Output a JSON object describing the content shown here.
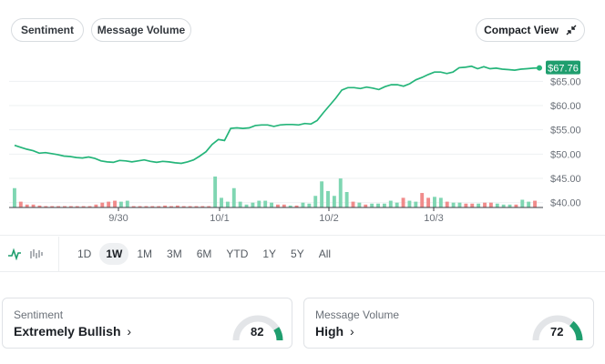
{
  "tabs": {
    "sentiment": "Sentiment",
    "message_volume": "Message Volume"
  },
  "compact_view": "Compact View",
  "price_badge": "$67.76",
  "colors": {
    "up": "#25b57a",
    "up_light": "#7fd6b2",
    "down": "#f08b8b",
    "accent": "#1f9e6e"
  },
  "chart_data": {
    "type": "line",
    "title": "",
    "x_ticks": [
      "9/30",
      "10/1",
      "10/2",
      "10/3"
    ],
    "y_ticks": [
      "$65.00",
      "$60.00",
      "$55.00",
      "$50.00",
      "$45.00",
      "$40.00"
    ],
    "ylim": [
      39,
      69
    ],
    "last_value": 67.76,
    "price": [
      51.8,
      51.4,
      51.0,
      50.7,
      50.2,
      50.3,
      50.1,
      49.9,
      49.6,
      49.5,
      49.3,
      49.2,
      49.4,
      49.1,
      48.6,
      48.4,
      48.3,
      48.7,
      48.6,
      48.4,
      48.6,
      48.8,
      48.5,
      48.3,
      48.5,
      48.4,
      48.2,
      48.1,
      48.4,
      48.8,
      49.6,
      50.5,
      52.0,
      53.0,
      52.8,
      55.3,
      55.4,
      55.3,
      55.4,
      55.9,
      56.0,
      56.0,
      55.7,
      56.0,
      56.1,
      56.1,
      56.0,
      56.3,
      56.2,
      56.9,
      58.5,
      60.0,
      61.5,
      63.2,
      63.7,
      63.7,
      63.5,
      63.8,
      63.6,
      63.3,
      63.9,
      64.3,
      64.3,
      64.0,
      64.5,
      65.3,
      65.8,
      66.4,
      66.9,
      66.9,
      66.6,
      66.9,
      67.8,
      67.9,
      68.1,
      67.6,
      68.0,
      67.6,
      67.7,
      67.5,
      67.4,
      67.3,
      67.5,
      67.6,
      67.7,
      67.76
    ],
    "volume": [
      {
        "v": 20,
        "d": "up"
      },
      {
        "v": 6,
        "d": "down"
      },
      {
        "v": 3,
        "d": "down"
      },
      {
        "v": 3,
        "d": "down"
      },
      {
        "v": 2,
        "d": "down"
      },
      {
        "v": 1,
        "d": "down"
      },
      {
        "v": 1,
        "d": "down"
      },
      {
        "v": 1,
        "d": "down"
      },
      {
        "v": 1,
        "d": "down"
      },
      {
        "v": 1,
        "d": "down"
      },
      {
        "v": 1,
        "d": "down"
      },
      {
        "v": 1,
        "d": "down"
      },
      {
        "v": 1,
        "d": "down"
      },
      {
        "v": 3,
        "d": "down"
      },
      {
        "v": 5,
        "d": "down"
      },
      {
        "v": 6,
        "d": "down"
      },
      {
        "v": 7,
        "d": "down"
      },
      {
        "v": 6,
        "d": "up"
      },
      {
        "v": 7,
        "d": "up"
      },
      {
        "v": 1,
        "d": "down"
      },
      {
        "v": 1,
        "d": "down"
      },
      {
        "v": 1,
        "d": "down"
      },
      {
        "v": 1,
        "d": "down"
      },
      {
        "v": 1,
        "d": "down"
      },
      {
        "v": 2,
        "d": "down"
      },
      {
        "v": 1,
        "d": "down"
      },
      {
        "v": 2,
        "d": "down"
      },
      {
        "v": 1,
        "d": "down"
      },
      {
        "v": 1,
        "d": "down"
      },
      {
        "v": 1,
        "d": "down"
      },
      {
        "v": 1,
        "d": "down"
      },
      {
        "v": 1,
        "d": "down"
      },
      {
        "v": 32,
        "d": "up"
      },
      {
        "v": 10,
        "d": "up"
      },
      {
        "v": 6,
        "d": "up"
      },
      {
        "v": 20,
        "d": "up"
      },
      {
        "v": 6,
        "d": "up"
      },
      {
        "v": 3,
        "d": "up"
      },
      {
        "v": 5,
        "d": "up"
      },
      {
        "v": 7,
        "d": "up"
      },
      {
        "v": 7,
        "d": "up"
      },
      {
        "v": 5,
        "d": "up"
      },
      {
        "v": 3,
        "d": "down"
      },
      {
        "v": 3,
        "d": "down"
      },
      {
        "v": 2,
        "d": "up"
      },
      {
        "v": 2,
        "d": "down"
      },
      {
        "v": 5,
        "d": "up"
      },
      {
        "v": 4,
        "d": "up"
      },
      {
        "v": 12,
        "d": "up"
      },
      {
        "v": 27,
        "d": "up"
      },
      {
        "v": 17,
        "d": "up"
      },
      {
        "v": 12,
        "d": "up"
      },
      {
        "v": 30,
        "d": "up"
      },
      {
        "v": 16,
        "d": "up"
      },
      {
        "v": 6,
        "d": "down"
      },
      {
        "v": 5,
        "d": "up"
      },
      {
        "v": 3,
        "d": "down"
      },
      {
        "v": 4,
        "d": "up"
      },
      {
        "v": 4,
        "d": "up"
      },
      {
        "v": 4,
        "d": "up"
      },
      {
        "v": 7,
        "d": "up"
      },
      {
        "v": 5,
        "d": "up"
      },
      {
        "v": 10,
        "d": "down"
      },
      {
        "v": 7,
        "d": "up"
      },
      {
        "v": 6,
        "d": "up"
      },
      {
        "v": 15,
        "d": "down"
      },
      {
        "v": 10,
        "d": "down"
      },
      {
        "v": 11,
        "d": "up"
      },
      {
        "v": 10,
        "d": "up"
      },
      {
        "v": 6,
        "d": "down"
      },
      {
        "v": 5,
        "d": "up"
      },
      {
        "v": 5,
        "d": "up"
      },
      {
        "v": 4,
        "d": "down"
      },
      {
        "v": 4,
        "d": "down"
      },
      {
        "v": 4,
        "d": "up"
      },
      {
        "v": 5,
        "d": "down"
      },
      {
        "v": 5,
        "d": "down"
      },
      {
        "v": 4,
        "d": "up"
      },
      {
        "v": 3,
        "d": "up"
      },
      {
        "v": 3,
        "d": "up"
      },
      {
        "v": 3,
        "d": "down"
      },
      {
        "v": 8,
        "d": "up"
      },
      {
        "v": 6,
        "d": "up"
      },
      {
        "v": 7,
        "d": "down"
      }
    ]
  },
  "chart_type_icons": [
    "line-chart-icon",
    "bar-chart-icon"
  ],
  "ranges": [
    "1D",
    "1W",
    "1M",
    "3M",
    "6M",
    "YTD",
    "1Y",
    "5Y",
    "All"
  ],
  "active_range": "1W",
  "cards": {
    "sentiment": {
      "label": "Sentiment",
      "value": "Extremely Bullish",
      "score": "82",
      "fraction": 0.82
    },
    "volume": {
      "label": "Message Volume",
      "value": "High",
      "score": "72",
      "fraction": 0.72
    }
  }
}
